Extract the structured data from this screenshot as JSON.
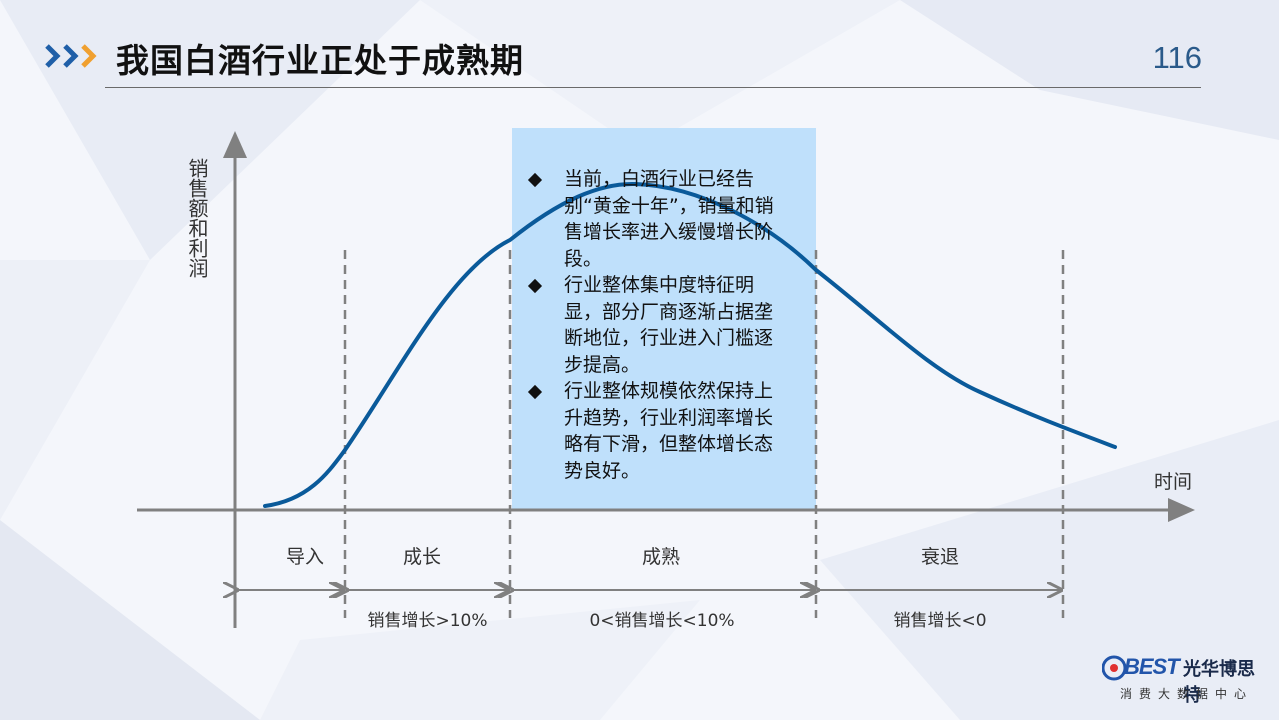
{
  "header": {
    "title": "我国白酒行业正处于成熟期",
    "page_number": "116"
  },
  "colors": {
    "curve": "#0a5a9a",
    "highlight": "#bfe0fb",
    "chevron_blue": "#1f5fa8",
    "chevron_orange": "#f0a030",
    "axis": "#808080"
  },
  "diagram": {
    "y_axis_label": "销售额和利润",
    "x_axis_label": "时间",
    "stages": [
      "导入",
      "成长",
      "成熟",
      "衰退"
    ],
    "growth_rates": [
      "销售增长>10%",
      "0<销售增长<10%",
      "销售增长<0"
    ],
    "bullets": [
      "当前，白酒行业已经告别“黄金十年”，销量和销售增长率进入缓慢增长阶段。",
      "行业整体集中度特征明显，部分厂商逐渐占据垄断地位，行业进入门槛逐步提高。",
      "行业整体规模依然保持上升趋势，行业利润率增长略有下滑，但整体增长态势良好。"
    ]
  },
  "logo": {
    "brand": "BEST",
    "name": "光华博思特",
    "subtitle": "消费大数据中心"
  }
}
